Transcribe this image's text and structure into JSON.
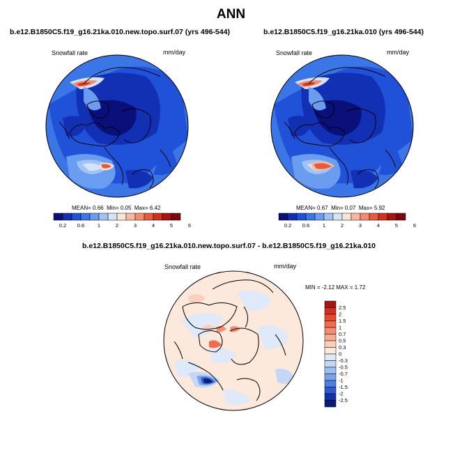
{
  "page": {
    "title": "ANN"
  },
  "panels": [
    {
      "case_title": "b.e12.B1850C5.f19_g16.21ka.010.new.topo.surf.07 (yrs 496-544)",
      "variable": "Snowfall rate",
      "units": "mm/day",
      "stats": {
        "mean_label": "MEAN=",
        "mean": "0.66",
        "min_label": "Min=",
        "min": "0.05",
        "max_label": "Max=",
        "max": "6.42"
      }
    },
    {
      "case_title": "b.e12.B1850C5.f19_g16.21ka.010 (yrs 496-544)",
      "variable": "Snowfall rate",
      "units": "mm/day",
      "stats": {
        "mean_label": "MEAN=",
        "mean": "0.67",
        "min_label": "Min=",
        "min": "0.07",
        "max_label": "Max=",
        "max": "5.92"
      }
    },
    {
      "case_title": "b.e12.B1850C5.f19_g16.21ka.010.new.topo.surf.07 - b.e12.B1850C5.f19_g16.21ka.010",
      "variable": "Snowfall rate",
      "units": "mm/day",
      "stats": {
        "min_label": "MIN =",
        "min": "-2.12",
        "max_label": "MAX =",
        "max": "1.72"
      }
    }
  ],
  "colorbars": {
    "abs": {
      "labels": [
        "0.2",
        "0.6",
        "1",
        "2",
        "3",
        "4",
        "5",
        "6"
      ],
      "colors": [
        "#0a0f7a",
        "#1230b4",
        "#1f52d8",
        "#3a76e6",
        "#6a9cef",
        "#a0c2f4",
        "#d6e4f8",
        "#fbe3d6",
        "#f7b89e",
        "#f48b6d",
        "#e85a3e",
        "#d2301c",
        "#a81510",
        "#7a0a08"
      ]
    },
    "diff": {
      "labels": [
        "2.5",
        "2",
        "1.5",
        "1",
        "0.7",
        "0.5",
        "0.3",
        "0",
        "-0.3",
        "-0.5",
        "-0.7",
        "-1",
        "-1.5",
        "-2",
        "-2.5"
      ],
      "colors": [
        "#a81510",
        "#d2301c",
        "#e84a30",
        "#f26b4c",
        "#f58e70",
        "#f7ad92",
        "#fad0bc",
        "#fde8dc",
        "#deeaf9",
        "#c4d8f5",
        "#9dbef0",
        "#7aa3ea",
        "#4c80e0",
        "#2a5bcf",
        "#1233a6",
        "#0a1b78"
      ]
    }
  },
  "chart_data": [
    {
      "type": "heatmap",
      "title": "Snowfall rate",
      "units": "mm/day",
      "projection": "north polar stereographic",
      "stats": {
        "mean": 0.66,
        "min": 0.05,
        "max": 6.42
      },
      "contour_levels": [
        0.2,
        0.4,
        0.6,
        0.8,
        1,
        1.5,
        2,
        2.5,
        3,
        3.5,
        4,
        5,
        6
      ]
    },
    {
      "type": "heatmap",
      "title": "Snowfall rate",
      "units": "mm/day",
      "projection": "north polar stereographic",
      "stats": {
        "mean": 0.67,
        "min": 0.07,
        "max": 5.92
      },
      "contour_levels": [
        0.2,
        0.4,
        0.6,
        0.8,
        1,
        1.5,
        2,
        2.5,
        3,
        3.5,
        4,
        5,
        6
      ]
    },
    {
      "type": "heatmap",
      "title": "Snowfall rate",
      "units": "mm/day",
      "projection": "north polar stereographic",
      "stats": {
        "min": -2.12,
        "max": 1.72
      },
      "contour_levels": [
        -2.5,
        -2,
        -1.5,
        -1,
        -0.7,
        -0.5,
        -0.3,
        0,
        0.3,
        0.5,
        0.7,
        1,
        1.5,
        2,
        2.5
      ]
    }
  ]
}
